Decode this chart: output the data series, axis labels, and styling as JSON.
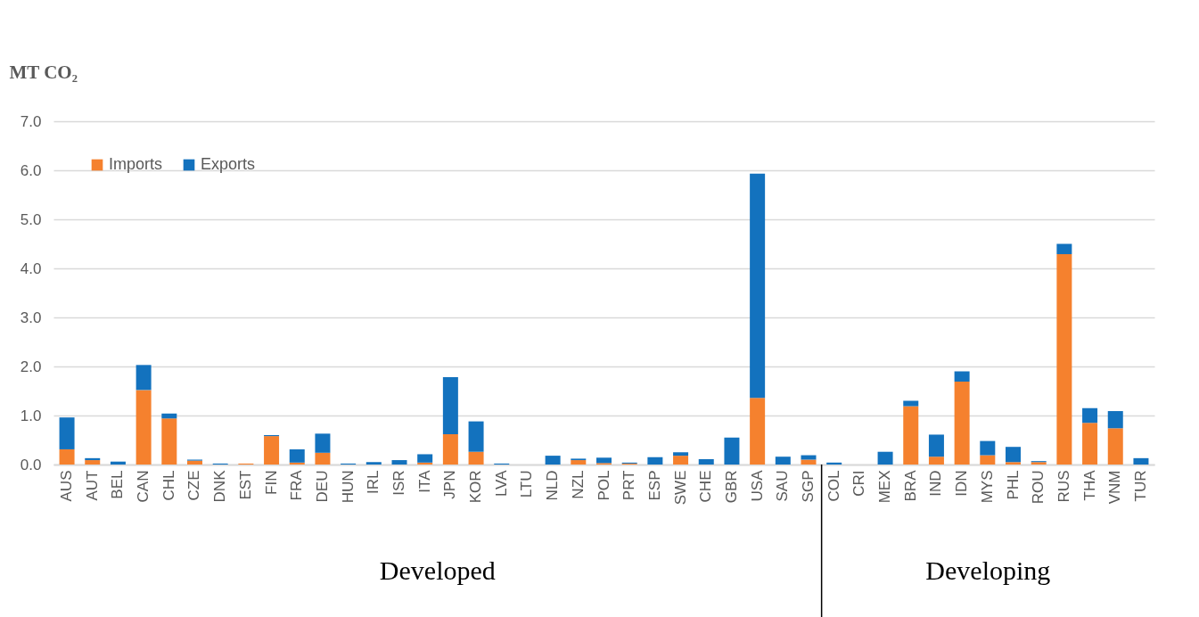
{
  "chart_data": {
    "type": "bar",
    "stacked": true,
    "ylabel": "MT CO₂",
    "categories": [
      "AUS",
      "AUT",
      "BEL",
      "CAN",
      "CHL",
      "CZE",
      "DNK",
      "EST",
      "FIN",
      "FRA",
      "DEU",
      "HUN",
      "IRL",
      "ISR",
      "ITA",
      "JPN",
      "KOR",
      "LVA",
      "LTU",
      "NLD",
      "NZL",
      "POL",
      "PRT",
      "ESP",
      "SWE",
      "CHE",
      "GBR",
      "USA",
      "SAU",
      "SGP",
      "COL",
      "CRI",
      "MEX",
      "BRA",
      "IND",
      "IDN",
      "MYS",
      "PHL",
      "ROU",
      "RUS",
      "THA",
      "VNM",
      "TUR"
    ],
    "series": [
      {
        "name": "Imports",
        "color": "#f5812e",
        "values": [
          0.31,
          0.09,
          0,
          1.52,
          0.94,
          0.08,
          0,
          0.02,
          0.58,
          0.04,
          0.24,
          0,
          0,
          0,
          0.04,
          0.62,
          0.26,
          0,
          0,
          0,
          0.09,
          0.03,
          0.02,
          0,
          0.18,
          0,
          0,
          1.36,
          0,
          0.1,
          0,
          0,
          0,
          1.19,
          0.16,
          1.69,
          0.19,
          0.05,
          0.05,
          4.29,
          0.85,
          0.74,
          0
        ]
      },
      {
        "name": "Exports",
        "color": "#1372be",
        "values": [
          0.65,
          0.04,
          0.06,
          0.51,
          0.1,
          0.02,
          0.02,
          0,
          0.02,
          0.27,
          0.39,
          0.02,
          0.05,
          0.09,
          0.17,
          1.16,
          0.62,
          0.02,
          0,
          0.18,
          0.03,
          0.11,
          0.02,
          0.15,
          0.07,
          0.11,
          0.55,
          4.57,
          0.16,
          0.09,
          0.04,
          0,
          0.26,
          0.11,
          0.45,
          0.21,
          0.29,
          0.31,
          0.02,
          0.21,
          0.3,
          0.35,
          0.13
        ]
      }
    ],
    "ylim": [
      0,
      7
    ],
    "yticks": [
      {
        "value": 0,
        "label": "0.0"
      },
      {
        "value": 1,
        "label": "1.0"
      },
      {
        "value": 2,
        "label": "2.0"
      },
      {
        "value": 3,
        "label": "3.0"
      },
      {
        "value": 4,
        "label": "4.0"
      },
      {
        "value": 5,
        "label": "5.0"
      },
      {
        "value": 6,
        "label": "6.0"
      },
      {
        "value": 7,
        "label": "7.0"
      }
    ],
    "grid": "y",
    "legend": "top left",
    "annotations": [
      "Developed",
      "Developing"
    ]
  }
}
